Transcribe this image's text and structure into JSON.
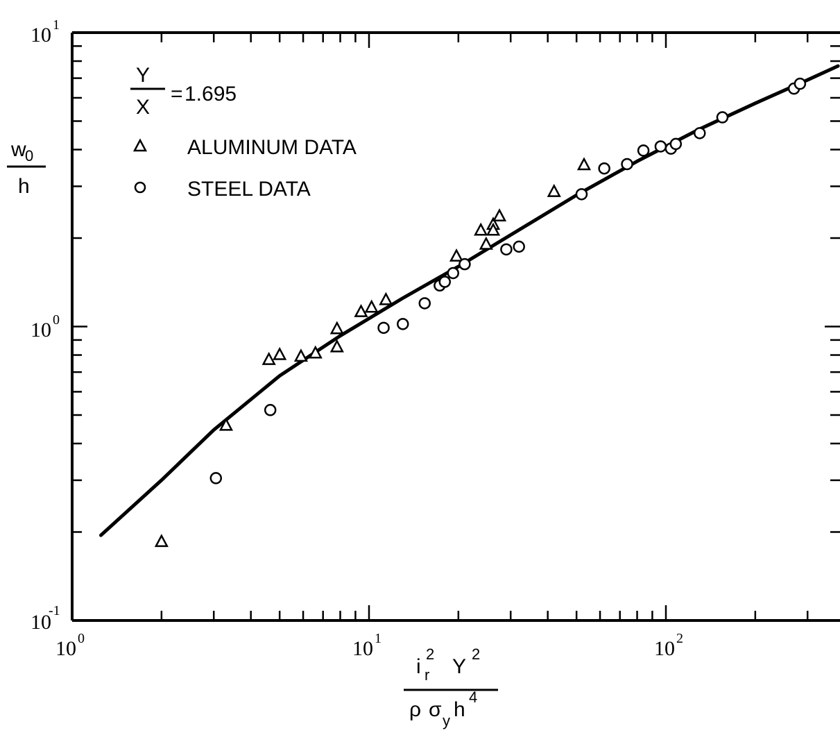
{
  "chart_data": {
    "type": "scatter",
    "x_scale": "log",
    "y_scale": "log",
    "xlim": [
      1,
      500
    ],
    "ylim": [
      0.1,
      10
    ],
    "grid": false,
    "x_tick_labels": [
      {
        "base": "10",
        "exp": "0",
        "value": 1
      },
      {
        "base": "10",
        "exp": "1",
        "value": 10
      },
      {
        "base": "10",
        "exp": "2",
        "value": 100
      }
    ],
    "y_tick_labels": [
      {
        "base": "10",
        "exp": "-1",
        "value": 0.1
      },
      {
        "base": "10",
        "exp": "0",
        "value": 1
      },
      {
        "base": "10",
        "exp": "1",
        "value": 10
      }
    ],
    "xlabel": {
      "num_base": "i",
      "num_sub": "r",
      "num_sup": "2",
      "num_rest": "Y",
      "num_rest_sup": "2",
      "den_rho": "ρ",
      "den_sigma": "σ",
      "den_sub": "y",
      "den_h": "h",
      "den_sup": "4"
    },
    "ylabel": {
      "numerator": "w",
      "numerator_sub": "0",
      "denominator": "h"
    },
    "annotation": {
      "numerator": "Y",
      "denominator": "X",
      "equals": "=",
      "value": "1.695"
    },
    "legend": {
      "placement": "top-left",
      "entries": [
        {
          "marker": "triangle",
          "label": "ALUMINUM DATA"
        },
        {
          "marker": "circle",
          "label": "STEEL DATA"
        }
      ]
    },
    "series": [
      {
        "name": "ALUMINUM DATA",
        "marker": "triangle",
        "points": [
          [
            2.0,
            0.185
          ],
          [
            3.3,
            0.46
          ],
          [
            4.6,
            0.77
          ],
          [
            5.0,
            0.8
          ],
          [
            5.9,
            0.79
          ],
          [
            6.6,
            0.81
          ],
          [
            7.8,
            0.98
          ],
          [
            7.8,
            0.85
          ],
          [
            9.4,
            1.12
          ],
          [
            10.2,
            1.16
          ],
          [
            11.4,
            1.23
          ],
          [
            19.7,
            1.73
          ],
          [
            23.8,
            2.12
          ],
          [
            24.8,
            1.9
          ],
          [
            26.2,
            2.22
          ],
          [
            26.2,
            2.12
          ],
          [
            27.5,
            2.37
          ],
          [
            42.0,
            2.87
          ],
          [
            53.0,
            3.54
          ]
        ]
      },
      {
        "name": "STEEL DATA",
        "marker": "circle",
        "points": [
          [
            3.05,
            0.305
          ],
          [
            4.65,
            0.52
          ],
          [
            11.2,
            0.99
          ],
          [
            13.0,
            1.02
          ],
          [
            15.4,
            1.2
          ],
          [
            17.3,
            1.38
          ],
          [
            18.0,
            1.42
          ],
          [
            19.2,
            1.52
          ],
          [
            21.0,
            1.63
          ],
          [
            29.0,
            1.83
          ],
          [
            32.0,
            1.87
          ],
          [
            52.0,
            2.82
          ],
          [
            62.0,
            3.45
          ],
          [
            74.0,
            3.57
          ],
          [
            84.0,
            3.97
          ],
          [
            96.0,
            4.1
          ],
          [
            104.0,
            4.03
          ],
          [
            108.0,
            4.18
          ],
          [
            130.0,
            4.55
          ],
          [
            155.0,
            5.15
          ],
          [
            270.0,
            6.45
          ],
          [
            283.0,
            6.7
          ]
        ]
      }
    ],
    "curve": {
      "points": [
        [
          1.25,
          0.195
        ],
        [
          2.0,
          0.3
        ],
        [
          3.0,
          0.445
        ],
        [
          5.0,
          0.68
        ],
        [
          8.0,
          0.93
        ],
        [
          13.0,
          1.25
        ],
        [
          20.0,
          1.6
        ],
        [
          30.0,
          2.05
        ],
        [
          50.0,
          2.8
        ],
        [
          80.0,
          3.65
        ],
        [
          130.0,
          4.7
        ],
        [
          200.0,
          5.75
        ],
        [
          300.0,
          6.9
        ],
        [
          380.0,
          7.7
        ]
      ]
    }
  }
}
